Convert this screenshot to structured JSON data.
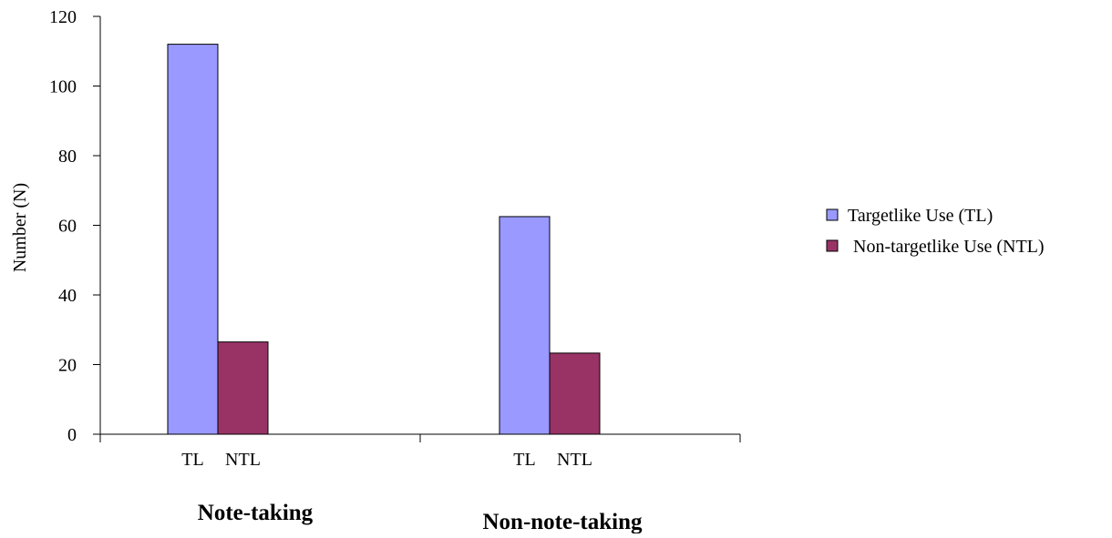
{
  "chart_data": {
    "type": "bar",
    "ylabel": "Number (N)",
    "ylim": [
      0,
      120
    ],
    "yticks": [
      0,
      20,
      40,
      60,
      80,
      100,
      120
    ],
    "categories": [
      "Note-taking",
      "Non-note-taking"
    ],
    "bar_labels": [
      "TL",
      "NTL"
    ],
    "series": [
      {
        "name": "Targetlike Use (TL)",
        "color": "#9999FF",
        "values": [
          112,
          62.5
        ]
      },
      {
        "name": "Non-targetlike Use (NTL)",
        "color": "#993366",
        "values": [
          26.5,
          23.3
        ]
      }
    ],
    "legend_position": "right",
    "grid": false
  }
}
